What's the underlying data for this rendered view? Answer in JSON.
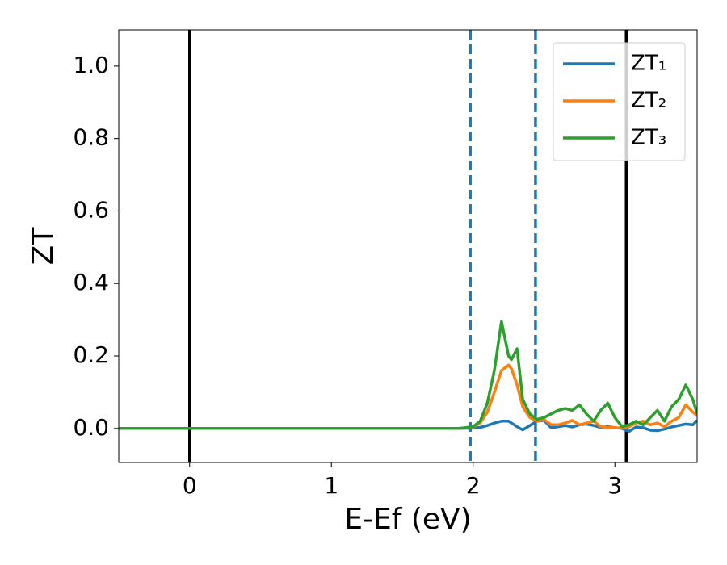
{
  "chart_data": {
    "type": "line",
    "xlabel": "E-Ef (eV)",
    "ylabel": "ZT",
    "xlim": [
      -0.5,
      3.58
    ],
    "ylim": [
      -0.094,
      1.1
    ],
    "xticks": [
      0,
      1,
      2,
      3
    ],
    "yticks": [
      {
        "value": 0,
        "label": "0.0"
      },
      0.2,
      0.4,
      0.6,
      0.8,
      {
        "value": 1,
        "label": "1.0"
      }
    ],
    "legend": "upper right",
    "vlines": [
      {
        "x": 0,
        "color": "#000000",
        "style": "solid"
      },
      {
        "x": 3.08,
        "color": "#000000",
        "style": "solid"
      },
      {
        "x": 1.98,
        "color": "#1f77b4",
        "style": "dashed"
      },
      {
        "x": 2.44,
        "color": "#1f77b4",
        "style": "dashed"
      }
    ],
    "x": [
      -0.5,
      1.9,
      2.0,
      2.05,
      2.1,
      2.15,
      2.2,
      2.25,
      2.27,
      2.31,
      2.35,
      2.4,
      2.45,
      2.5,
      2.55,
      2.6,
      2.65,
      2.7,
      2.75,
      2.8,
      2.85,
      2.9,
      2.95,
      3.0,
      3.05,
      3.1,
      3.15,
      3.2,
      3.25,
      3.3,
      3.35,
      3.4,
      3.45,
      3.5,
      3.55,
      3.58
    ],
    "series": [
      {
        "name": "ZT₁",
        "color": "#1f77b4",
        "values": [
          0,
          0,
          0.001,
          0.003,
          0.008,
          0.015,
          0.02,
          0.02,
          0.015,
          0.005,
          -0.004,
          0.008,
          0.02,
          0.022,
          0.002,
          0.005,
          0.008,
          0.004,
          0.01,
          0.012,
          0.008,
          0.003,
          0.005,
          0.002,
          0.0,
          -0.008,
          0.004,
          0.002,
          -0.005,
          -0.006,
          -0.002,
          0.004,
          0.008,
          0.012,
          0.01,
          0.022
        ]
      },
      {
        "name": "ZT₂",
        "color": "#ff7f0e",
        "values": [
          0,
          0,
          0.004,
          0.015,
          0.045,
          0.1,
          0.16,
          0.175,
          0.165,
          0.12,
          0.06,
          0.03,
          0.02,
          0.025,
          0.01,
          0.01,
          0.015,
          0.022,
          0.01,
          0.015,
          0.02,
          0.005,
          0.003,
          0.002,
          0.001,
          0.005,
          0.015,
          0.02,
          0.01,
          0.015,
          0.005,
          0.02,
          0.03,
          0.065,
          0.045,
          0.035
        ]
      },
      {
        "name": "ZT₃",
        "color": "#2ca02c",
        "values": [
          0,
          0,
          0.005,
          0.02,
          0.07,
          0.16,
          0.295,
          0.2,
          0.19,
          0.22,
          0.08,
          0.04,
          0.025,
          0.03,
          0.04,
          0.05,
          0.055,
          0.05,
          0.065,
          0.04,
          0.02,
          0.05,
          0.07,
          0.03,
          0.005,
          0.01,
          0.02,
          0.01,
          0.03,
          0.05,
          0.02,
          0.06,
          0.08,
          0.12,
          0.08,
          0.04
        ]
      }
    ]
  }
}
